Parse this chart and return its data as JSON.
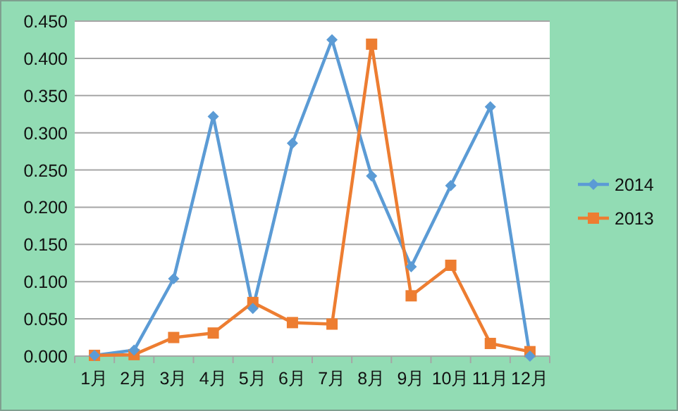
{
  "chart_data": {
    "type": "line",
    "categories": [
      "1月",
      "2月",
      "3月",
      "4月",
      "5月",
      "6月",
      "7月",
      "8月",
      "9月",
      "10月",
      "11月",
      "12月"
    ],
    "series": [
      {
        "name": "2014",
        "color": "#5b9bd5",
        "marker": "diamond",
        "values": [
          0.001,
          0.008,
          0.104,
          0.322,
          0.064,
          0.286,
          0.425,
          0.242,
          0.12,
          0.229,
          0.335,
          0.0
        ]
      },
      {
        "name": "2013",
        "color": "#ed7d31",
        "marker": "square",
        "values": [
          0.001,
          0.002,
          0.025,
          0.031,
          0.072,
          0.045,
          0.043,
          0.419,
          0.081,
          0.122,
          0.017,
          0.006
        ]
      }
    ],
    "ylim": [
      0,
      0.45
    ],
    "yticks": [
      {
        "value": 0,
        "label": "0.000"
      },
      {
        "value": 0.05,
        "label": "0.050"
      },
      {
        "value": 0.1,
        "label": "0.100"
      },
      {
        "value": 0.15,
        "label": "0.150"
      },
      {
        "value": 0.2,
        "label": "0.200"
      },
      {
        "value": 0.25,
        "label": "0.250"
      },
      {
        "value": 0.3,
        "label": "0.300"
      },
      {
        "value": 0.35,
        "label": "0.350"
      },
      {
        "value": 0.4,
        "label": "0.400"
      },
      {
        "value": 0.45,
        "label": "0.450"
      }
    ],
    "grid": "y",
    "legend": "right",
    "line_style": "solid"
  }
}
